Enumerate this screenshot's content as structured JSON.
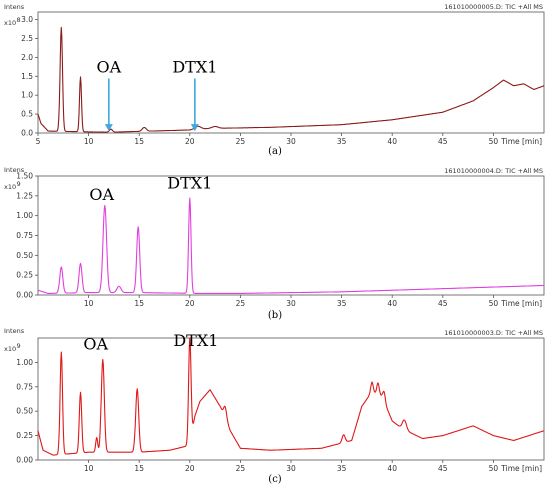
{
  "colors": {
    "a": "#8b1a1a",
    "b": "#e040e0",
    "c": "#e01818",
    "arrow": "#3ea8e0",
    "axis": "#555555"
  },
  "chart_data": [
    {
      "type": "line",
      "caption": "(a)",
      "header": "161010000005.D: TIC +All MS",
      "y_title": "Intens",
      "y_exponent": "x10",
      "y_exponent_power": "8",
      "xlabel": "Time [min]",
      "xlim": [
        5,
        55
      ],
      "ylim": [
        0,
        3.2
      ],
      "x_ticks": [
        5,
        10,
        15,
        20,
        25,
        30,
        35,
        40,
        45,
        50
      ],
      "y_ticks": [
        "0.0",
        "0.5",
        "1.0",
        "1.5",
        "2.0",
        "2.5",
        "3.0"
      ],
      "y_tick_values": [
        0,
        0.5,
        1.0,
        1.5,
        2.0,
        2.5,
        3.0
      ],
      "color_key": "a",
      "baseline": [
        [
          5,
          0.5
        ],
        [
          5.3,
          0.25
        ],
        [
          6,
          0.05
        ],
        [
          12,
          0.02
        ],
        [
          16,
          0.05
        ],
        [
          20,
          0.08
        ],
        [
          22,
          0.12
        ],
        [
          28,
          0.15
        ],
        [
          35,
          0.22
        ],
        [
          40,
          0.35
        ],
        [
          45,
          0.55
        ],
        [
          48,
          0.85
        ],
        [
          50,
          1.2
        ],
        [
          51,
          1.4
        ],
        [
          52,
          1.25
        ],
        [
          53,
          1.3
        ],
        [
          54,
          1.15
        ],
        [
          55,
          1.25
        ]
      ],
      "peaks": [
        [
          7.3,
          2.75,
          0.12
        ],
        [
          9.2,
          1.45,
          0.1
        ],
        [
          12.2,
          0.08,
          0.15
        ],
        [
          15.5,
          0.1,
          0.2
        ],
        [
          20.8,
          0.08,
          0.3
        ],
        [
          22.5,
          0.05,
          0.3
        ]
      ],
      "annotations": [
        {
          "label": "OA",
          "x": 12.0,
          "arrow_tip": 0.05,
          "text_y": 1.6
        },
        {
          "label": "DTX1",
          "x": 20.5,
          "arrow_tip": 0.05,
          "text_y": 1.6
        }
      ]
    },
    {
      "type": "line",
      "caption": "(b)",
      "header": "161010000004.D: TIC +All MS",
      "y_title": "Intens",
      "y_exponent": "x10",
      "y_exponent_power": "9",
      "xlabel": "Time [min]",
      "xlim": [
        5,
        55
      ],
      "ylim": [
        0,
        1.5
      ],
      "x_ticks": [
        10,
        15,
        20,
        25,
        30,
        35,
        40,
        45,
        50
      ],
      "y_ticks": [
        "0.00",
        "0.25",
        "0.50",
        "0.75",
        "1.00",
        "1.25",
        "1.50"
      ],
      "y_tick_values": [
        0,
        0.25,
        0.5,
        0.75,
        1.0,
        1.25,
        1.5
      ],
      "color_key": "b",
      "baseline": [
        [
          5,
          0.06
        ],
        [
          6,
          0.02
        ],
        [
          10,
          0.03
        ],
        [
          15,
          0.03
        ],
        [
          21,
          0.02
        ],
        [
          25,
          0.02
        ],
        [
          35,
          0.04
        ],
        [
          45,
          0.08
        ],
        [
          50,
          0.1
        ],
        [
          55,
          0.12
        ]
      ],
      "peaks": [
        [
          7.3,
          0.33,
          0.15
        ],
        [
          9.2,
          0.37,
          0.15
        ],
        [
          11.6,
          1.1,
          0.18
        ],
        [
          13.0,
          0.08,
          0.2
        ],
        [
          14.9,
          0.83,
          0.15
        ],
        [
          20.0,
          1.2,
          0.12
        ]
      ],
      "annotations": [
        {
          "label": "OA",
          "x": 11.3,
          "text_y": 1.2
        },
        {
          "label": "DTX1",
          "x": 20.0,
          "text_y": 1.34
        }
      ]
    },
    {
      "type": "line",
      "caption": "(c)",
      "header": "161010000003.D: TIC +All MS",
      "y_title": "Intens",
      "y_exponent": "x10",
      "y_exponent_power": "9",
      "xlabel": "Time [min]",
      "xlim": [
        5,
        55
      ],
      "ylim": [
        0,
        1.25
      ],
      "x_ticks": [
        10,
        15,
        20,
        25,
        30,
        35,
        40,
        45,
        50
      ],
      "y_ticks": [
        "0.00",
        "0.25",
        "0.50",
        "0.75",
        "1.00"
      ],
      "y_tick_values": [
        0,
        0.25,
        0.5,
        0.75,
        1.0
      ],
      "color_key": "c",
      "baseline": [
        [
          5,
          0.3
        ],
        [
          5.5,
          0.1
        ],
        [
          6.5,
          0.05
        ],
        [
          10,
          0.08
        ],
        [
          15,
          0.08
        ],
        [
          18,
          0.1
        ],
        [
          20,
          0.15
        ],
        [
          20.5,
          0.45
        ],
        [
          21,
          0.6
        ],
        [
          22,
          0.72
        ],
        [
          23,
          0.55
        ],
        [
          24,
          0.3
        ],
        [
          25,
          0.12
        ],
        [
          28,
          0.1
        ],
        [
          33,
          0.12
        ],
        [
          36,
          0.2
        ],
        [
          37,
          0.55
        ],
        [
          38,
          0.7
        ],
        [
          39,
          0.65
        ],
        [
          40,
          0.4
        ],
        [
          41,
          0.32
        ],
        [
          43,
          0.22
        ],
        [
          45,
          0.25
        ],
        [
          48,
          0.35
        ],
        [
          50,
          0.25
        ],
        [
          52,
          0.2
        ],
        [
          55,
          0.3
        ]
      ],
      "peaks": [
        [
          7.3,
          1.05,
          0.12
        ],
        [
          9.2,
          0.62,
          0.12
        ],
        [
          10.8,
          0.15,
          0.1
        ],
        [
          11.4,
          0.95,
          0.15
        ],
        [
          14.8,
          0.65,
          0.15
        ],
        [
          20.0,
          1.1,
          0.12
        ],
        [
          23.5,
          0.12,
          0.15
        ],
        [
          35.2,
          0.08,
          0.15
        ],
        [
          38.0,
          0.1,
          0.12
        ],
        [
          38.6,
          0.12,
          0.12
        ],
        [
          39.2,
          0.1,
          0.12
        ],
        [
          41.2,
          0.1,
          0.2
        ]
      ],
      "annotations": [
        {
          "label": "OA",
          "x": 10.7,
          "text_y": 1.13
        },
        {
          "label": "DTX1",
          "x": 20.6,
          "text_y": 1.17
        }
      ]
    }
  ]
}
